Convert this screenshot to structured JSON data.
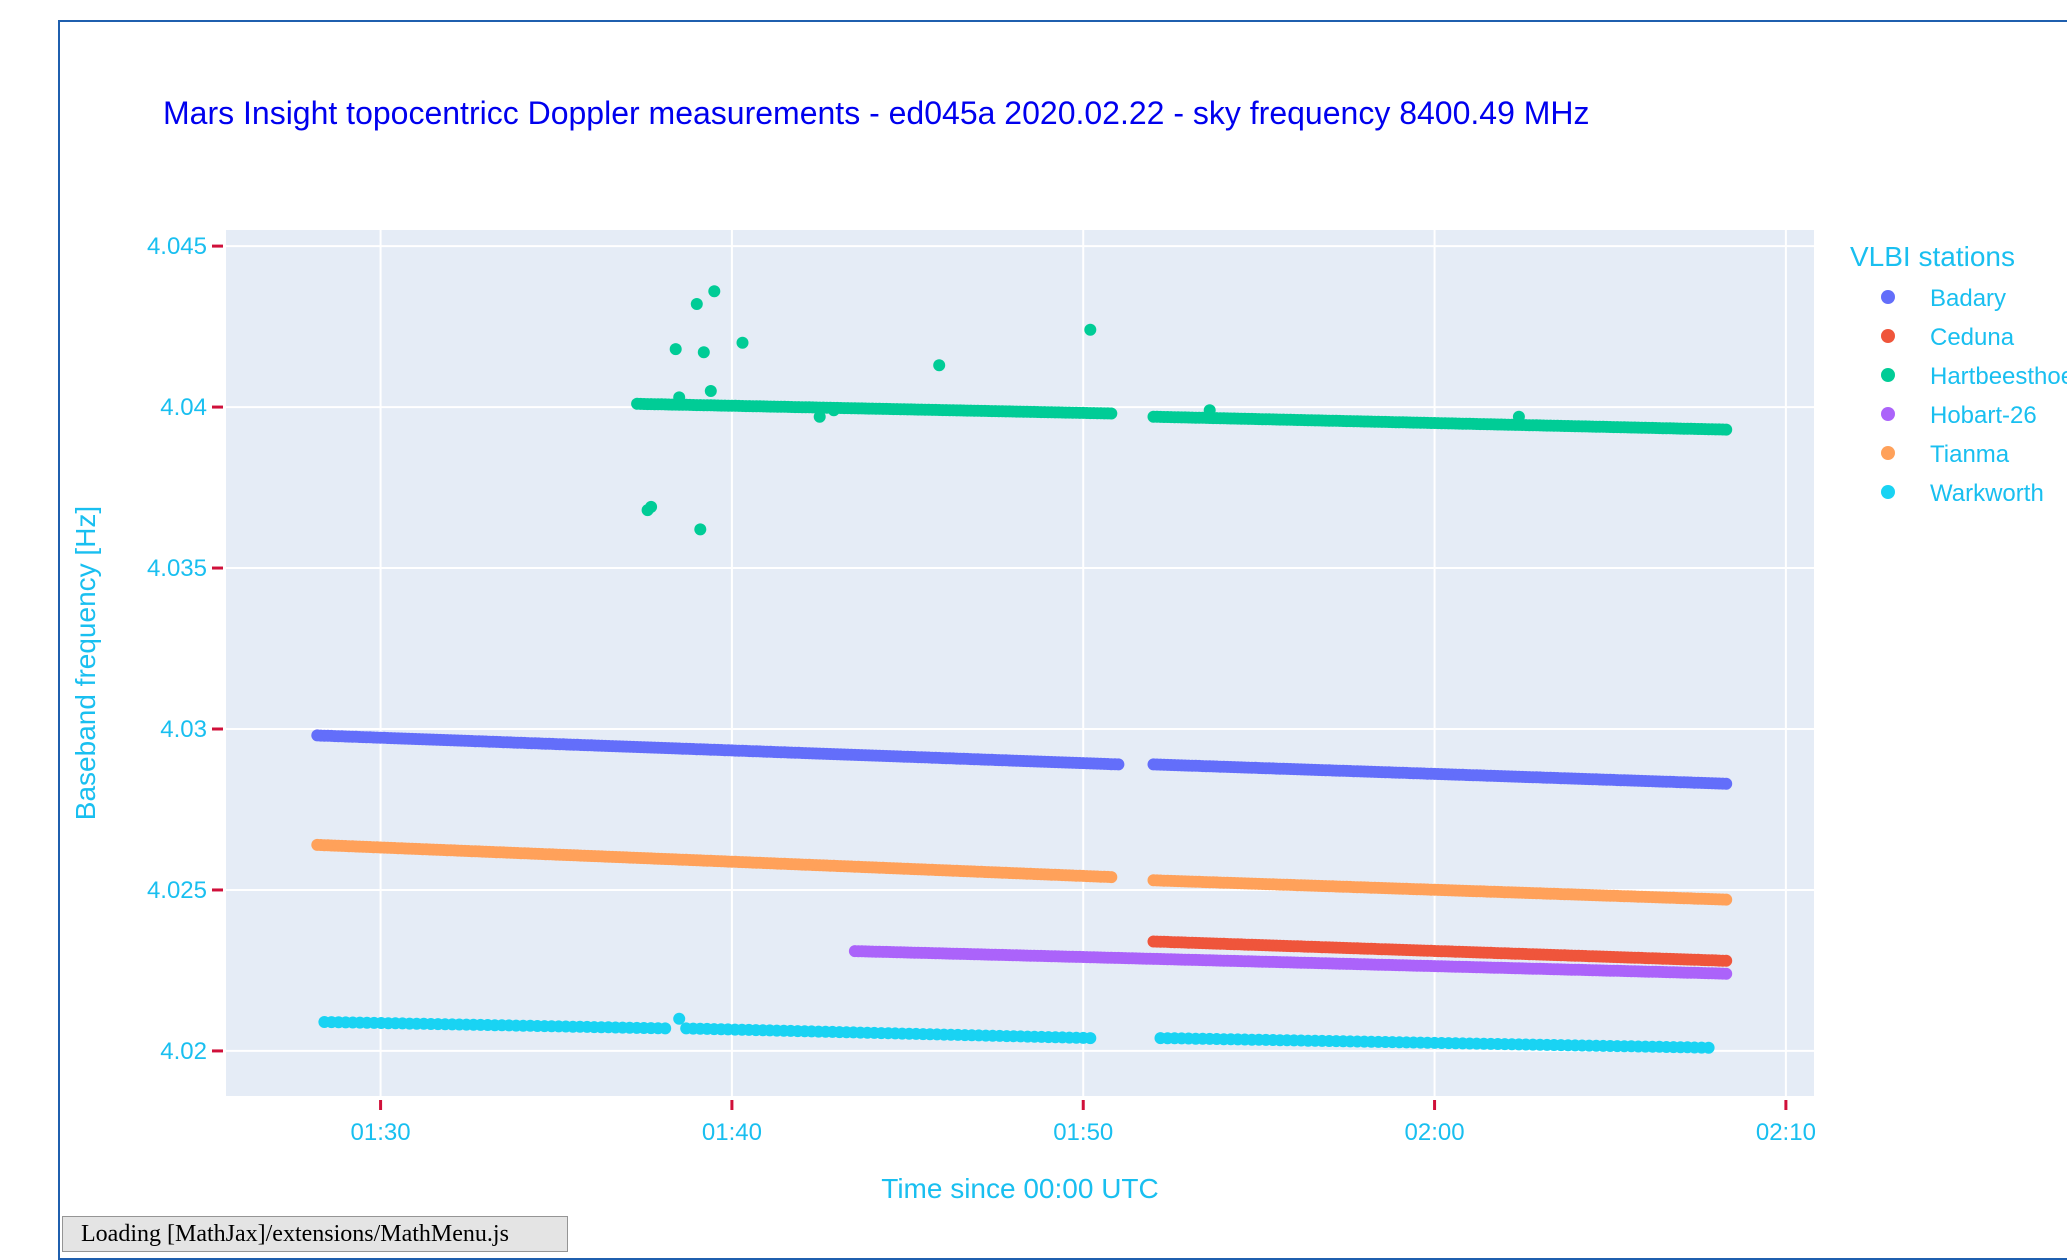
{
  "chart_data": {
    "type": "scatter",
    "title": "Mars Insight topocentricc Doppler measurements - ed045a 2020.02.22 - sky frequency 8400.49 MHz",
    "xlabel": "Time since 00:00 UTC",
    "ylabel": "Baseband frequency [Hz]",
    "xlim": [
      "01:25.6",
      "02:10.8"
    ],
    "ylim": [
      4.0186,
      4.0455
    ],
    "x_ticks": [
      "01:30",
      "01:40",
      "01:50",
      "02:00",
      "02:10"
    ],
    "y_ticks": [
      "4.02",
      "4.025",
      "4.03",
      "4.035",
      "4.04",
      "4.045"
    ],
    "grid": true,
    "legend": {
      "title": "VLBI stations",
      "placement": "right"
    },
    "series": [
      {
        "name": "Badary",
        "color": "#636efa",
        "mode": "dense",
        "segments": [
          {
            "start": "01:28.2",
            "end": "01:51.0",
            "y_start": 4.0298,
            "y_end": 4.0289
          },
          {
            "start": "01:52.0",
            "end": "02:08.3",
            "y_start": 4.0289,
            "y_end": 4.0283
          }
        ],
        "extra_points": []
      },
      {
        "name": "Ceduna",
        "color": "#ef553b",
        "mode": "dense",
        "segments": [
          {
            "start": "01:52.0",
            "end": "02:08.3",
            "y_start": 4.0234,
            "y_end": 4.0228
          }
        ],
        "extra_points": []
      },
      {
        "name": "Hartbeesthoek",
        "color": "#00cc96",
        "mode": "dense",
        "segments": [
          {
            "start": "01:37.3",
            "end": "01:50.8",
            "y_start": 4.0401,
            "y_end": 4.0398
          },
          {
            "start": "01:52.0",
            "end": "02:08.3",
            "y_start": 4.0397,
            "y_end": 4.0393
          }
        ],
        "extra_points": [
          [
            "01:39.5",
            4.0436
          ],
          [
            "01:39.0",
            4.0432
          ],
          [
            "01:50.2",
            4.0424
          ],
          [
            "01:40.3",
            4.042
          ],
          [
            "01:38.4",
            4.0418
          ],
          [
            "01:39.2",
            4.0417
          ],
          [
            "01:45.9",
            4.0413
          ],
          [
            "01:39.4",
            4.0405
          ],
          [
            "01:38.5",
            4.0403
          ],
          [
            "01:42.5",
            4.0397
          ],
          [
            "01:42.9",
            4.0399
          ],
          [
            "01:53.6",
            4.0399
          ],
          [
            "02:02.4",
            4.0397
          ],
          [
            "01:37.7",
            4.0369
          ],
          [
            "01:37.6",
            4.0368
          ],
          [
            "01:39.1",
            4.0362
          ]
        ]
      },
      {
        "name": "Hobart-26",
        "color": "#ab63fa",
        "mode": "dense",
        "segments": [
          {
            "start": "01:43.5",
            "end": "02:08.3",
            "y_start": 4.0231,
            "y_end": 4.0224
          }
        ],
        "extra_points": []
      },
      {
        "name": "Tianma",
        "color": "#ffa15a",
        "mode": "dense",
        "segments": [
          {
            "start": "01:28.2",
            "end": "01:50.8",
            "y_start": 4.0264,
            "y_end": 4.0254
          },
          {
            "start": "01:52.0",
            "end": "02:08.3",
            "y_start": 4.0253,
            "y_end": 4.0247
          }
        ],
        "extra_points": []
      },
      {
        "name": "Warkworth",
        "color": "#19d3f3",
        "mode": "dotted",
        "segments": [
          {
            "start": "01:28.4",
            "end": "01:38.1",
            "y_start": 4.0209,
            "y_end": 4.0207
          },
          {
            "start": "01:38.7",
            "end": "01:50.2",
            "y_start": 4.0207,
            "y_end": 4.0204
          },
          {
            "start": "01:52.2",
            "end": "02:07.8",
            "y_start": 4.0204,
            "y_end": 4.0201
          }
        ],
        "extra_points": [
          [
            "01:38.5",
            4.021
          ]
        ]
      }
    ]
  },
  "status_message": "Loading [MathJax]/extensions/MathMenu.js"
}
